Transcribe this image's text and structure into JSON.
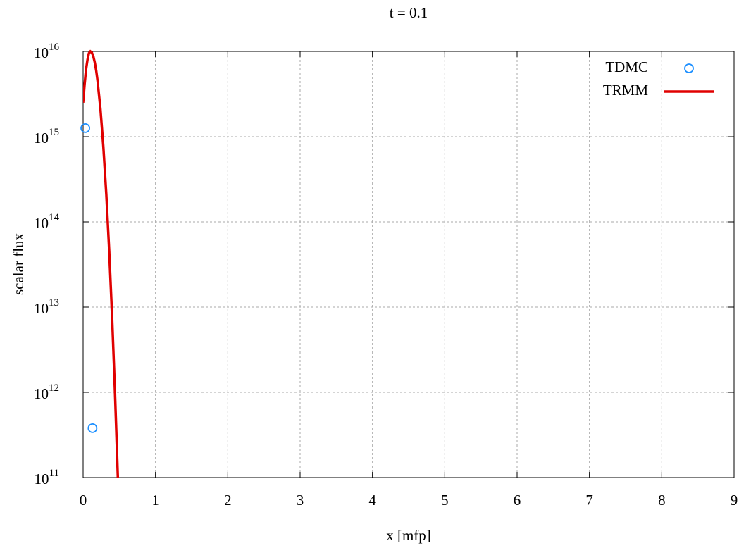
{
  "chart_data": {
    "type": "line",
    "title": "t = 0.1",
    "xlabel": "x [mfp]",
    "ylabel": "scalar flux",
    "xlim": [
      0,
      9
    ],
    "xticks": [
      0,
      1,
      2,
      3,
      4,
      5,
      6,
      7,
      8,
      9
    ],
    "ylim": [
      100000000000.0,
      1e+16
    ],
    "log_y": true,
    "grid": true,
    "legend": "upper right",
    "yticks": [
      {
        "value": 100000000000.0,
        "label": "10",
        "exponent": "11"
      },
      {
        "value": 1000000000000.0,
        "label": "10",
        "exponent": "12"
      },
      {
        "value": 10000000000000.0,
        "label": "10",
        "exponent": "13"
      },
      {
        "value": 100000000000000.0,
        "label": "10",
        "exponent": "14"
      },
      {
        "value": 1000000000000000.0,
        "label": "10",
        "exponent": "15"
      },
      {
        "value": 1e+16,
        "label": "10",
        "exponent": "16"
      }
    ],
    "series": [
      {
        "name": "TDMC",
        "type": "scatter",
        "color": "#1e90ff",
        "x": [
          0.03,
          0.13
        ],
        "values": [
          1260000000000000.0,
          380000000000.0
        ]
      },
      {
        "name": "TRMM",
        "type": "line",
        "color": "#e00000",
        "x": [
          0,
          0.02,
          0.04,
          0.06,
          0.08,
          0.1,
          0.12,
          0.14,
          0.16,
          0.18,
          0.2,
          0.24,
          0.28,
          0.32,
          0.36,
          0.4,
          0.44,
          0.48
        ],
        "values": [
          2500000000000000.0,
          4100000000000000.0,
          6100000000000000.0,
          8000000000000000.0,
          9500000000000000.0,
          1e+16,
          9700000000000000.0,
          8800000000000000.0,
          7500000000000000.0,
          6000000000000000.0,
          4500000000000000.0,
          2100000000000000.0,
          760000000000000.0,
          210000000000000.0,
          46000000000000.0,
          7700000000000.0,
          1000000000000.0,
          100000000000.0
        ]
      }
    ]
  }
}
